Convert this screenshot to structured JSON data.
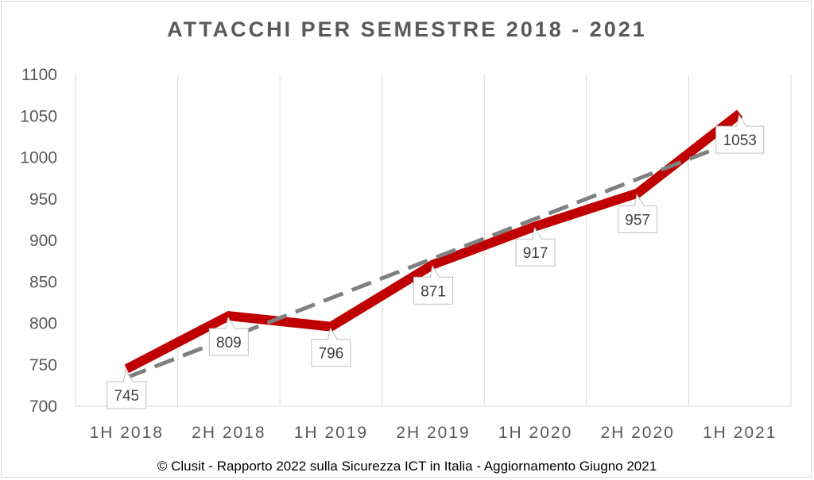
{
  "chart_data": {
    "type": "line",
    "title": "ATTACCHI PER SEMESTRE 2018 - 2021",
    "categories": [
      "1H 2018",
      "2H 2018",
      "1H 2019",
      "2H 2019",
      "1H 2020",
      "2H 2020",
      "1H 2021"
    ],
    "series": [
      {
        "values": [
          745,
          809,
          796,
          871,
          917,
          957,
          1053
        ],
        "color": "#c00000",
        "style": "solid"
      }
    ],
    "trendline": {
      "type": "linear",
      "color": "#808080",
      "style": "dashed"
    },
    "data_labels": [
      "745",
      "809",
      "796",
      "871",
      "917",
      "957",
      "1053"
    ],
    "ylim": [
      700,
      1100
    ],
    "yticks": [
      700,
      750,
      800,
      850,
      900,
      950,
      1000,
      1050,
      1100
    ],
    "grid": "vertical",
    "legend": "none"
  },
  "footer": "© Clusit - Rapporto 2022 sulla Sicurezza ICT in Italia - Aggiornamento Giugno 2021"
}
